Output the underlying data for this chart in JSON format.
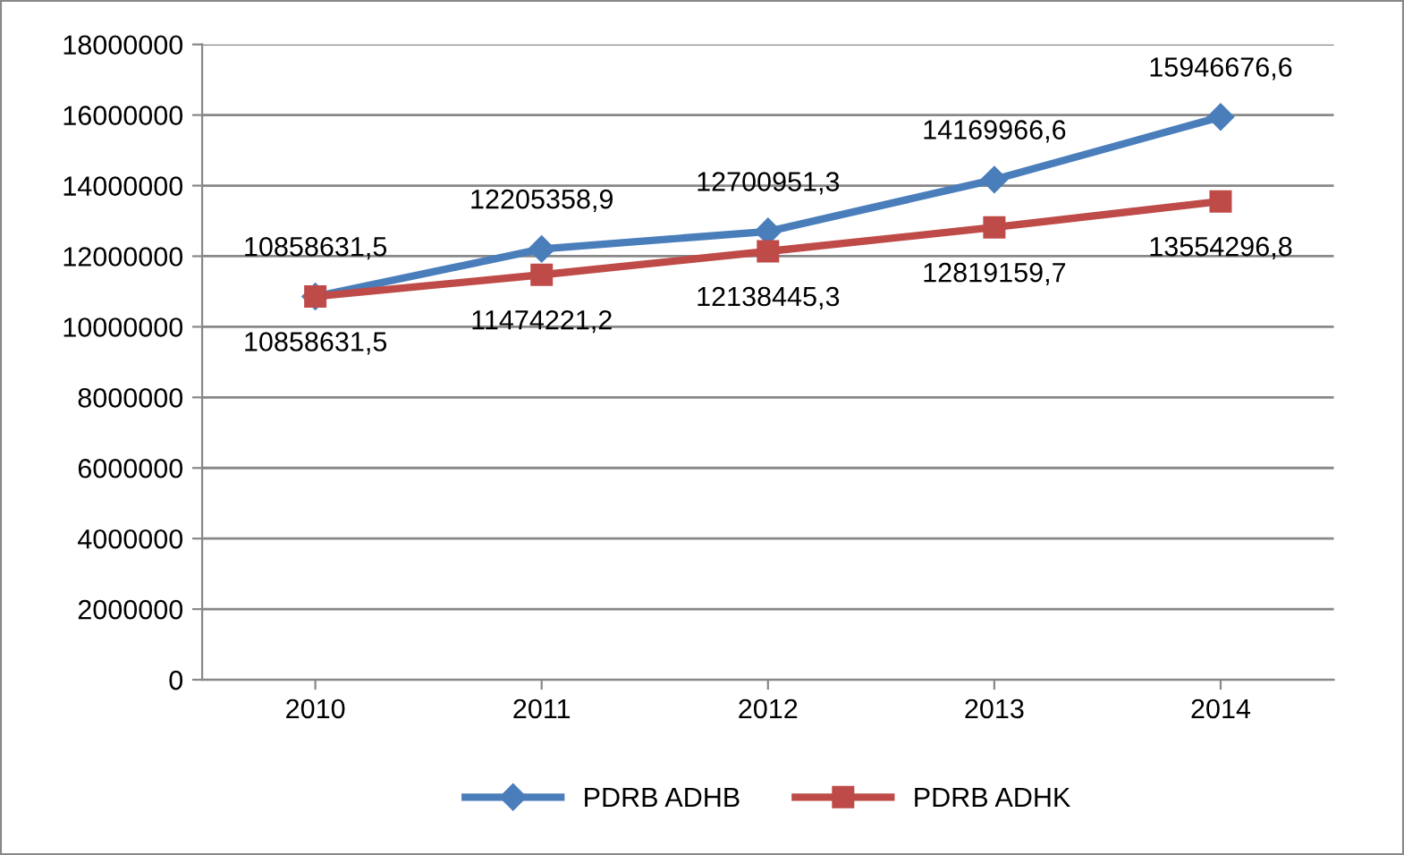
{
  "chart_data": {
    "type": "line",
    "categories": [
      "2010",
      "2011",
      "2012",
      "2013",
      "2014"
    ],
    "series": [
      {
        "name": "PDRB ADHB",
        "color": "#4a7ebb",
        "marker": "diamond",
        "values": [
          10858631.5,
          12205358.9,
          12700951.3,
          14169966.6,
          15946676.6
        ],
        "value_labels": [
          "10858631,5",
          "12205358,9",
          "12700951,3",
          "14169966,6",
          "15946676,6"
        ]
      },
      {
        "name": "PDRB ADHK",
        "color": "#be4b48",
        "marker": "square",
        "values": [
          10858631.5,
          11474221.2,
          12138445.3,
          12819159.7,
          13554296.8
        ],
        "value_labels": [
          "10858631,5",
          "11474221,2",
          "12138445,3",
          "12819159,7",
          "13554296,8"
        ]
      }
    ],
    "ylim": [
      0,
      18000000
    ],
    "yticks": [
      0,
      2000000,
      4000000,
      6000000,
      8000000,
      10000000,
      12000000,
      14000000,
      16000000,
      18000000
    ],
    "grid": "y",
    "legend": "bottom",
    "line_style": "solid"
  }
}
